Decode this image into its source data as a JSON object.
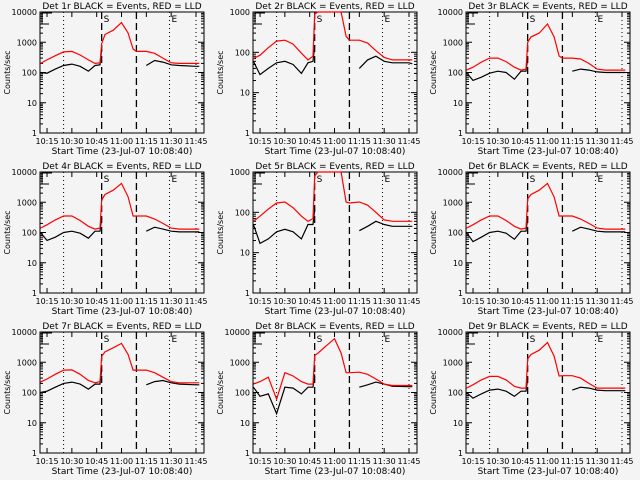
{
  "chart_data": [
    {
      "type": "line",
      "title": "Det 1r BLACK = Events, RED = LLD",
      "ylim": [
        1,
        10000
      ]
    },
    {
      "type": "line",
      "title": "Det 2r BLACK = Events, RED = LLD",
      "ylim": [
        1,
        1000
      ]
    },
    {
      "type": "line",
      "title": "Det 3r BLACK = Events, RED = LLD",
      "ylim": [
        1,
        10000
      ]
    },
    {
      "type": "line",
      "title": "Det 4r BLACK = Events, RED = LLD",
      "ylim": [
        1,
        10000
      ]
    },
    {
      "type": "line",
      "title": "Det 5r BLACK = Events, RED = LLD",
      "ylim": [
        1,
        1000
      ]
    },
    {
      "type": "line",
      "title": "Det 6r BLACK = Events, RED = LLD",
      "ylim": [
        1,
        10000
      ]
    },
    {
      "type": "line",
      "title": "Det 7r BLACK = Events, RED = LLD",
      "ylim": [
        1,
        10000
      ]
    },
    {
      "type": "line",
      "title": "Det 8r BLACK = Events, RED = LLD",
      "ylim": [
        1,
        10000
      ]
    },
    {
      "type": "line",
      "title": "Det 9r BLACK = Events, RED = LLD",
      "ylim": [
        1,
        10000
      ]
    }
  ],
  "shared": {
    "xlabel": "Start Time (23-Jul-07 10:08:40)",
    "ylabel": "Counts/sec",
    "yscale": "log",
    "xlim": [
      "10:10:45",
      "11:49:50"
    ],
    "xticks": [
      "10:15",
      "10:30",
      "10:45",
      "11:00",
      "11:15",
      "11:30",
      "11:45"
    ],
    "markers": {
      "dotted": [
        "10:25",
        "11:29",
        "11:45"
      ],
      "dashed": [
        "10:48",
        "11:09"
      ],
      "start_label": "S",
      "end_label": "E"
    },
    "colors": {
      "events": "#000000",
      "lld": "#ff0000"
    },
    "t": [
      "10:11",
      "10:15",
      "10:20",
      "10:25",
      "10:30",
      "10:35",
      "10:40",
      "10:44",
      "10:47",
      "10:48",
      "10:50",
      "10:55",
      "11:00",
      "11:04",
      "11:07",
      "11:09",
      "11:15",
      "11:20",
      "11:25",
      "11:30",
      "11:35",
      "11:45",
      "11:47"
    ]
  },
  "series": [
    {
      "red": [
        200,
        260,
        360,
        480,
        500,
        380,
        260,
        200,
        210,
        900,
        1800,
        2500,
        4500,
        2000,
        600,
        500,
        500,
        430,
        300,
        210,
        200,
        200,
        200
      ],
      "black": [
        100,
        95,
        130,
        170,
        190,
        160,
        110,
        170,
        180,
        600,
        null,
        null,
        null,
        null,
        null,
        null,
        170,
        250,
        220,
        180,
        170,
        160,
        160
      ]
    },
    {
      "red": [
        70,
        85,
        130,
        190,
        200,
        160,
        95,
        65,
        80,
        900,
        1200,
        2500,
        4500,
        1500,
        250,
        200,
        200,
        170,
        110,
        75,
        65,
        65,
        65
      ],
      "black": [
        60,
        28,
        40,
        55,
        60,
        50,
        30,
        55,
        60,
        150,
        null,
        null,
        null,
        null,
        null,
        null,
        40,
        65,
        80,
        60,
        55,
        55,
        52
      ]
    },
    {
      "red": [
        120,
        150,
        220,
        300,
        300,
        230,
        150,
        120,
        130,
        1000,
        1500,
        2000,
        4000,
        1500,
        350,
        300,
        300,
        280,
        200,
        130,
        120,
        120,
        120
      ],
      "black": [
        100,
        55,
        70,
        95,
        110,
        100,
        60,
        110,
        110,
        300,
        null,
        null,
        null,
        null,
        null,
        null,
        110,
        130,
        120,
        105,
        100,
        100,
        100
      ]
    },
    {
      "red": [
        140,
        180,
        260,
        350,
        350,
        250,
        160,
        130,
        140,
        1200,
        1800,
        2500,
        4200,
        1500,
        350,
        350,
        350,
        280,
        200,
        140,
        130,
        130,
        130
      ],
      "black": [
        100,
        55,
        70,
        100,
        110,
        95,
        65,
        110,
        110,
        300,
        null,
        null,
        null,
        null,
        null,
        null,
        110,
        150,
        130,
        110,
        105,
        105,
        105
      ]
    },
    {
      "red": [
        60,
        80,
        120,
        170,
        180,
        130,
        80,
        60,
        70,
        800,
        1200,
        2500,
        4000,
        1200,
        180,
        170,
        180,
        150,
        100,
        65,
        60,
        60,
        60
      ],
      "black": [
        50,
        17,
        22,
        33,
        38,
        33,
        22,
        50,
        50,
        120,
        null,
        null,
        null,
        null,
        null,
        null,
        35,
        45,
        60,
        50,
        45,
        45,
        45
      ]
    },
    {
      "red": [
        140,
        180,
        260,
        350,
        350,
        250,
        160,
        130,
        140,
        1300,
        1800,
        2500,
        4200,
        1500,
        350,
        350,
        350,
        280,
        200,
        140,
        130,
        130,
        130
      ],
      "black": [
        100,
        50,
        70,
        100,
        110,
        95,
        60,
        110,
        110,
        300,
        null,
        null,
        null,
        null,
        null,
        null,
        110,
        150,
        130,
        110,
        105,
        105,
        105
      ]
    },
    {
      "red": [
        220,
        280,
        400,
        550,
        560,
        400,
        250,
        210,
        230,
        1600,
        2200,
        3000,
        4200,
        1800,
        550,
        550,
        550,
        450,
        320,
        230,
        210,
        210,
        210
      ],
      "black": [
        100,
        110,
        150,
        200,
        220,
        190,
        130,
        190,
        190,
        600,
        null,
        null,
        null,
        null,
        null,
        null,
        180,
        230,
        250,
        210,
        190,
        180,
        180
      ]
    },
    {
      "red": [
        190,
        230,
        320,
        60,
        450,
        350,
        230,
        190,
        190,
        1700,
        2000,
        3500,
        6000,
        2000,
        450,
        450,
        470,
        400,
        280,
        190,
        170,
        170,
        170
      ],
      "black": [
        150,
        75,
        90,
        20,
        150,
        140,
        90,
        150,
        150,
        400,
        null,
        null,
        null,
        null,
        null,
        null,
        150,
        180,
        220,
        190,
        160,
        155,
        155
      ]
    },
    {
      "red": [
        140,
        180,
        260,
        340,
        340,
        260,
        160,
        140,
        140,
        1300,
        1800,
        2500,
        4500,
        1600,
        350,
        360,
        360,
        300,
        200,
        140,
        140,
        140,
        140
      ],
      "black": [
        100,
        65,
        90,
        120,
        130,
        110,
        75,
        110,
        110,
        300,
        null,
        null,
        null,
        null,
        null,
        null,
        120,
        150,
        140,
        120,
        115,
        115,
        115
      ]
    }
  ]
}
